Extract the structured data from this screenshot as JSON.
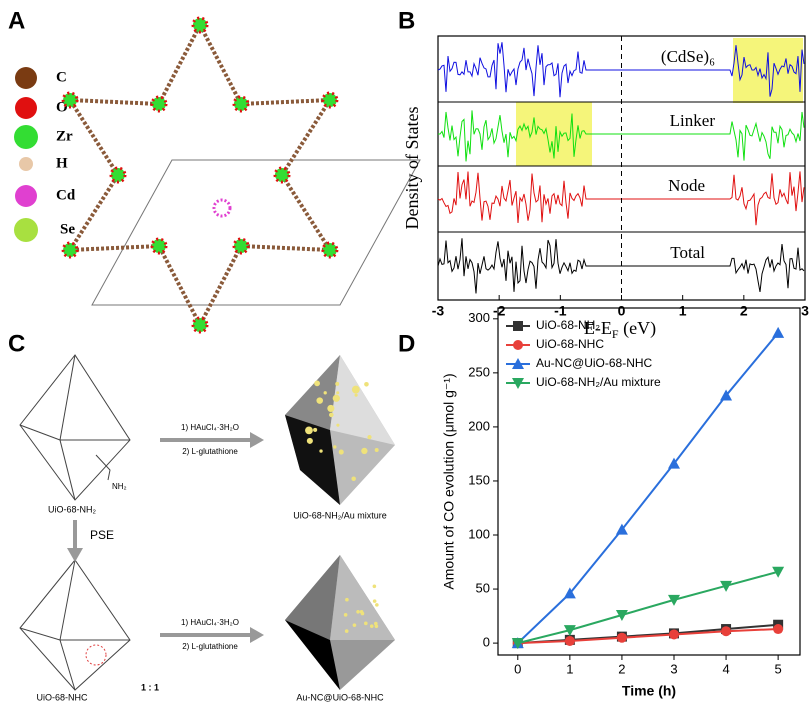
{
  "panel_labels": [
    "A",
    "B",
    "C",
    "D"
  ],
  "elements": [
    {
      "symbol": "C",
      "color": "#7a3b12"
    },
    {
      "symbol": "O",
      "color": "#e01010"
    },
    {
      "symbol": "Zr",
      "color": "#33dd33"
    },
    {
      "symbol": "H",
      "color": "#e8c8a8"
    },
    {
      "symbol": "Cd",
      "color": "#e040d0"
    },
    {
      "symbol": "Se",
      "color": "#a8e040"
    }
  ],
  "dos": {
    "ylabel": "Density of States",
    "xlabel": {
      "main": "E-E",
      "sub": "F",
      "rest": " (eV)"
    },
    "xlim": [
      -3,
      3
    ],
    "xticks": [
      -3,
      -2,
      -1,
      0,
      1,
      2,
      3
    ],
    "traces": [
      {
        "name": "(CdSe)₆",
        "color": "#1010e0"
      },
      {
        "name": "Linker",
        "color": "#10e010"
      },
      {
        "name": "Node",
        "color": "#e01010"
      },
      {
        "name": "Total",
        "color": "#000000"
      }
    ]
  },
  "scheme": {
    "reagents": [
      "1) HAuCl₄·3H₂O",
      "2) L-glutathione"
    ],
    "amine": "NH₂",
    "start": "UiO-68-NH₂",
    "mixture": "UiO-68-NH₂/Au mixture",
    "pse": "PSE",
    "nhc": "UiO-68-NHC",
    "product": "Au-NC@UiO-68-NHC",
    "ratio": "1 : 1"
  },
  "chart_data": {
    "type": "line",
    "xlabel": "Time (h)",
    "ylabel": "Amount of CO evolution (μmol g⁻¹)",
    "x": [
      0,
      1,
      2,
      3,
      4,
      5
    ],
    "xlim": [
      -0.38,
      5.42
    ],
    "xticks": [
      0,
      1,
      2,
      3,
      4,
      5
    ],
    "ylim": [
      -11,
      310
    ],
    "yticks": [
      0,
      50,
      100,
      150,
      200,
      250,
      300
    ],
    "series": [
      {
        "name": "UiO-68-NH₂",
        "color": "#333333",
        "marker": "square",
        "values": [
          0,
          3,
          6,
          9,
          13,
          17
        ]
      },
      {
        "name": "UiO-68-NHC",
        "color": "#e8403a",
        "marker": "circle",
        "values": [
          0,
          2,
          5,
          8,
          11,
          13
        ]
      },
      {
        "name": "Au-NC@UiO-68-NHC",
        "color": "#2a6fdc",
        "marker": "triangle-up",
        "values": [
          0,
          46,
          105,
          166,
          229,
          287
        ]
      },
      {
        "name": "UiO-68-NH₂/Au mixture",
        "color": "#2aa860",
        "marker": "triangle-down",
        "values": [
          0,
          12,
          26,
          40,
          53,
          66
        ]
      }
    ]
  }
}
